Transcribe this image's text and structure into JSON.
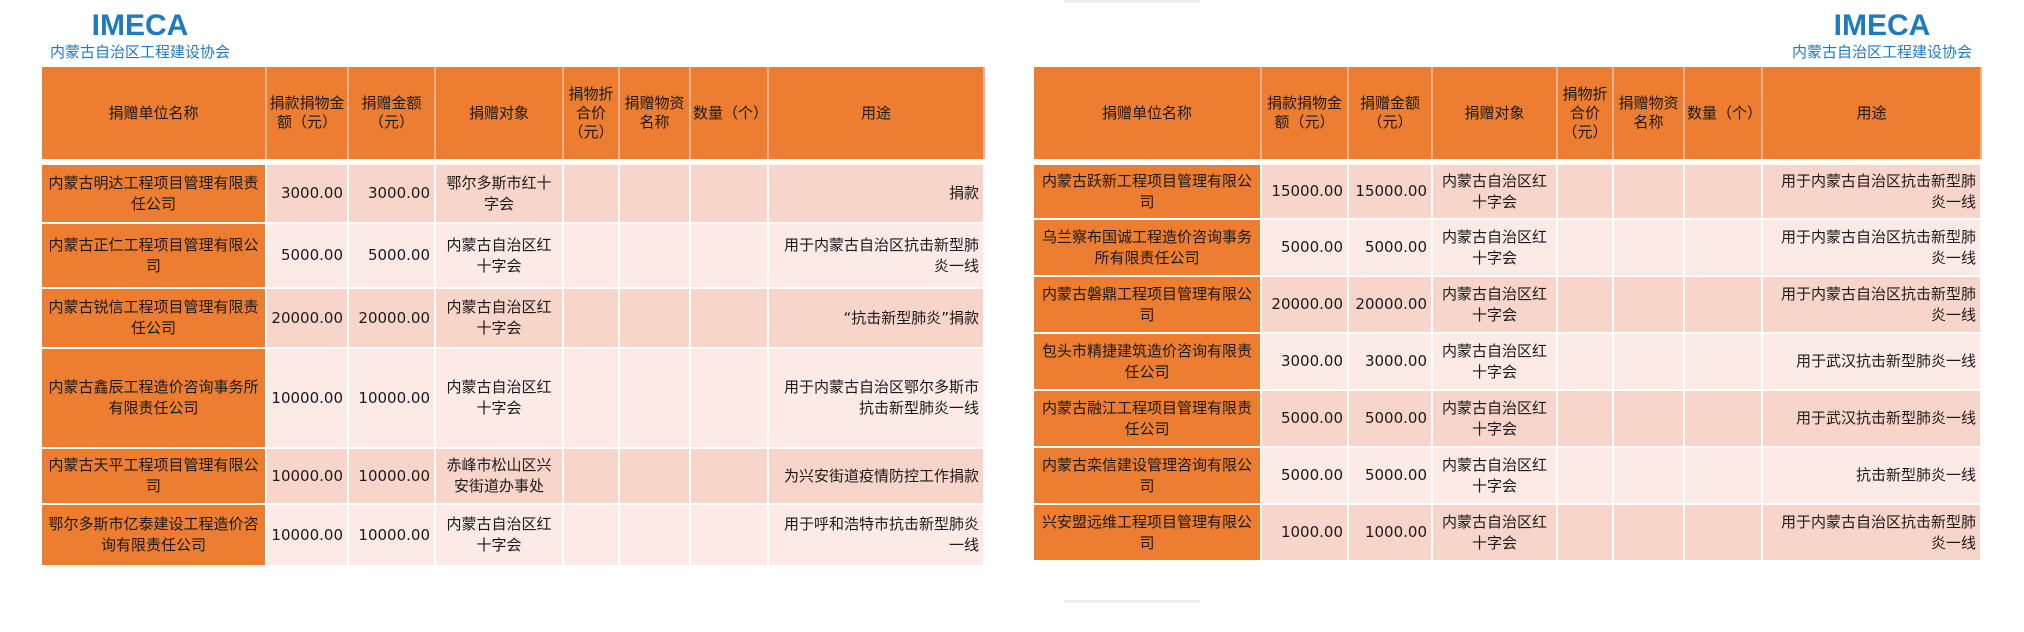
{
  "logo": {
    "title": "IMECA",
    "subtitle": "内蒙古自治区工程建设协会"
  },
  "colors": {
    "header": "#ED7D31",
    "row_dark": "#F8D5CB",
    "row_light": "#FBEAE5",
    "logo": "#1f7bc1"
  },
  "headers": [
    "捐赠单位名称",
    "捐款捐物金额（元）",
    "捐赠金额（元）",
    "捐赠对象",
    "捐物折合价（元）",
    "捐赠物资名称",
    "数量（个）",
    "用途"
  ],
  "left_rows": [
    {
      "name": "内蒙古明达工程项目管理有限责任公司",
      "amount": "3000.00",
      "donation": "3000.00",
      "target": "鄂尔多斯市红十字会",
      "use": "捐款"
    },
    {
      "name": "内蒙古正仁工程项目管理有限公司",
      "amount": "5000.00",
      "donation": "5000.00",
      "target": "内蒙古自治区红十字会",
      "use": "用于内蒙古自治区抗击新型肺炎一线"
    },
    {
      "name": "内蒙古锐信工程项目管理有限责任公司",
      "amount": "20000.00",
      "donation": "20000.00",
      "target": "内蒙古自治区红十字会",
      "use": "“抗击新型肺炎”捐款"
    },
    {
      "name": "内蒙古鑫辰工程造价咨询事务所有限责任公司",
      "amount": "10000.00",
      "donation": "10000.00",
      "target": "内蒙古自治区红十字会",
      "use": "用于内蒙古自治区鄂尔多斯市抗击新型肺炎一线"
    },
    {
      "name": "内蒙古天平工程项目管理有限公司",
      "amount": "10000.00",
      "donation": "10000.00",
      "target": "赤峰市松山区兴安街道办事处",
      "use": "为兴安街道疫情防控工作捐款"
    },
    {
      "name": "鄂尔多斯市亿泰建设工程造价咨询有限责任公司",
      "amount": "10000.00",
      "donation": "10000.00",
      "target": "内蒙古自治区红十字会",
      "use": "用于呼和浩特市抗击新型肺炎一线"
    }
  ],
  "right_rows": [
    {
      "name": "内蒙古跃新工程项目管理有限公司",
      "amount": "15000.00",
      "donation": "15000.00",
      "target": "内蒙古自治区红十字会",
      "use": "用于内蒙古自治区抗击新型肺炎一线"
    },
    {
      "name": "乌兰察布国诚工程造价咨询事务所有限责任公司",
      "amount": "5000.00",
      "donation": "5000.00",
      "target": "内蒙古自治区红十字会",
      "use": "用于内蒙古自治区抗击新型肺炎一线"
    },
    {
      "name": "内蒙古磐鼎工程项目管理有限公司",
      "amount": "20000.00",
      "donation": "20000.00",
      "target": "内蒙古自治区红十字会",
      "use": "用于内蒙古自治区抗击新型肺炎一线"
    },
    {
      "name": "包头市精捷建筑造价咨询有限责任公司",
      "amount": "3000.00",
      "donation": "3000.00",
      "target": "内蒙古自治区红十字会",
      "use": "用于武汉抗击新型肺炎一线"
    },
    {
      "name": "内蒙古融江工程项目管理有限责任公司",
      "amount": "5000.00",
      "donation": "5000.00",
      "target": "内蒙古自治区红十字会",
      "use": "用于武汉抗击新型肺炎一线"
    },
    {
      "name": "内蒙古栾信建设管理咨询有限公司",
      "amount": "5000.00",
      "donation": "5000.00",
      "target": "内蒙古自治区红十字会",
      "use": "抗击新型肺炎一线"
    },
    {
      "name": "兴安盟远维工程项目管理有限公司",
      "amount": "1000.00",
      "donation": "1000.00",
      "target": "内蒙古自治区红十字会",
      "use": "用于内蒙古自治区抗击新型肺炎一线"
    }
  ]
}
